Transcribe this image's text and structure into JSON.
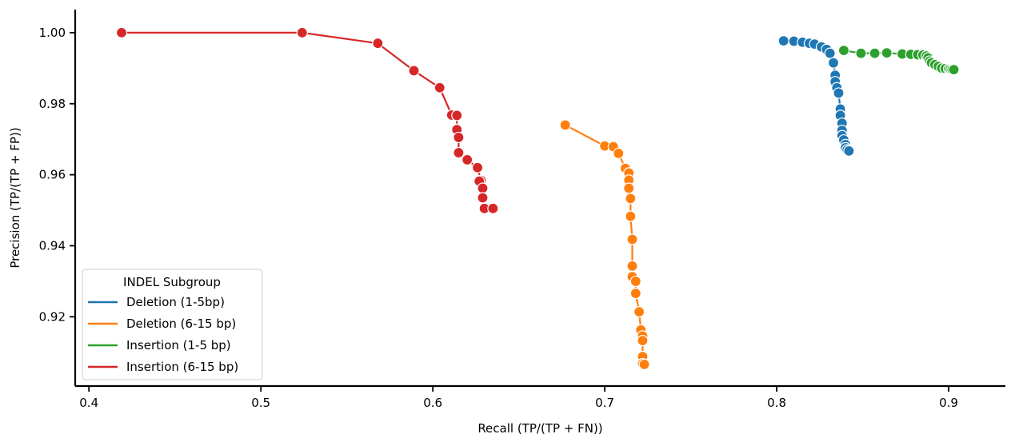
{
  "chart_data": {
    "type": "scatter",
    "xlabel": "Recall (TP/(TP + FN))",
    "ylabel": "Precision (TP/(TP + FP))",
    "xlim": [
      0.392,
      0.933
    ],
    "ylim": [
      0.9005,
      1.0065
    ],
    "xticks": [
      0.4,
      0.5,
      0.6,
      0.7,
      0.8,
      0.9
    ],
    "xtick_labels": [
      "0.4",
      "0.5",
      "0.6",
      "0.7",
      "0.8",
      "0.9"
    ],
    "yticks": [
      0.92,
      0.94,
      0.96,
      0.98,
      1.0
    ],
    "ytick_labels": [
      "0.92",
      "0.94",
      "0.96",
      "0.98",
      "1.00"
    ],
    "grid": false,
    "legend": {
      "title": "INDEL Subgroup",
      "placement": "lower-left"
    },
    "series": [
      {
        "name": "Deletion (1-5bp)",
        "color": "#1f77b4",
        "points": [
          [
            0.804,
            0.9977
          ],
          [
            0.81,
            0.9976
          ],
          [
            0.815,
            0.9973
          ],
          [
            0.819,
            0.997
          ],
          [
            0.822,
            0.9968
          ],
          [
            0.826,
            0.996
          ],
          [
            0.829,
            0.9953
          ],
          [
            0.831,
            0.9942
          ],
          [
            0.833,
            0.9915
          ],
          [
            0.834,
            0.988
          ],
          [
            0.834,
            0.9862
          ],
          [
            0.835,
            0.9845
          ],
          [
            0.836,
            0.983
          ],
          [
            0.837,
            0.9785
          ],
          [
            0.837,
            0.9767
          ],
          [
            0.838,
            0.9745
          ],
          [
            0.838,
            0.9725
          ],
          [
            0.838,
            0.971
          ],
          [
            0.839,
            0.9698
          ],
          [
            0.84,
            0.9685
          ],
          [
            0.84,
            0.9676
          ],
          [
            0.841,
            0.967
          ],
          [
            0.842,
            0.9667
          ]
        ]
      },
      {
        "name": "Deletion (6-15 bp)",
        "color": "#ff7f0e",
        "points": [
          [
            0.677,
            0.974
          ],
          [
            0.7,
            0.9681
          ],
          [
            0.705,
            0.9679
          ],
          [
            0.708,
            0.966
          ],
          [
            0.712,
            0.9618
          ],
          [
            0.714,
            0.9605
          ],
          [
            0.714,
            0.9585
          ],
          [
            0.714,
            0.9562
          ],
          [
            0.715,
            0.9533
          ],
          [
            0.715,
            0.9483
          ],
          [
            0.716,
            0.9418
          ],
          [
            0.716,
            0.9343
          ],
          [
            0.716,
            0.9313
          ],
          [
            0.718,
            0.93
          ],
          [
            0.718,
            0.9266
          ],
          [
            0.72,
            0.9214
          ],
          [
            0.721,
            0.9163
          ],
          [
            0.722,
            0.9146
          ],
          [
            0.722,
            0.9133
          ],
          [
            0.722,
            0.9088
          ],
          [
            0.722,
            0.9068
          ],
          [
            0.723,
            0.9066
          ]
        ]
      },
      {
        "name": "Insertion (1-5 bp)",
        "color": "#2ca02c",
        "points": [
          [
            0.839,
            0.995
          ],
          [
            0.849,
            0.9942
          ],
          [
            0.857,
            0.9942
          ],
          [
            0.864,
            0.9943
          ],
          [
            0.873,
            0.994
          ],
          [
            0.878,
            0.9939
          ],
          [
            0.882,
            0.9938
          ],
          [
            0.885,
            0.9937
          ],
          [
            0.887,
            0.9934
          ],
          [
            0.888,
            0.9929
          ],
          [
            0.889,
            0.992
          ],
          [
            0.89,
            0.9915
          ],
          [
            0.892,
            0.991
          ],
          [
            0.894,
            0.9905
          ],
          [
            0.896,
            0.99
          ],
          [
            0.898,
            0.9899
          ],
          [
            0.9,
            0.9898
          ],
          [
            0.901,
            0.9897
          ],
          [
            0.902,
            0.9896
          ],
          [
            0.903,
            0.9896
          ]
        ]
      },
      {
        "name": "Insertion (6-15 bp)",
        "color": "#d62728",
        "points": [
          [
            0.419,
            1.0
          ],
          [
            0.524,
            1.0
          ],
          [
            0.568,
            0.997
          ],
          [
            0.589,
            0.9893
          ],
          [
            0.604,
            0.9845
          ],
          [
            0.611,
            0.9768
          ],
          [
            0.614,
            0.9767
          ],
          [
            0.614,
            0.9728
          ],
          [
            0.614,
            0.9727
          ],
          [
            0.615,
            0.9705
          ],
          [
            0.615,
            0.9662
          ],
          [
            0.62,
            0.9642
          ],
          [
            0.626,
            0.962
          ],
          [
            0.628,
            0.9584
          ],
          [
            0.627,
            0.9582
          ],
          [
            0.629,
            0.9562
          ],
          [
            0.629,
            0.9535
          ],
          [
            0.63,
            0.9505
          ],
          [
            0.635,
            0.9505
          ]
        ]
      }
    ]
  }
}
